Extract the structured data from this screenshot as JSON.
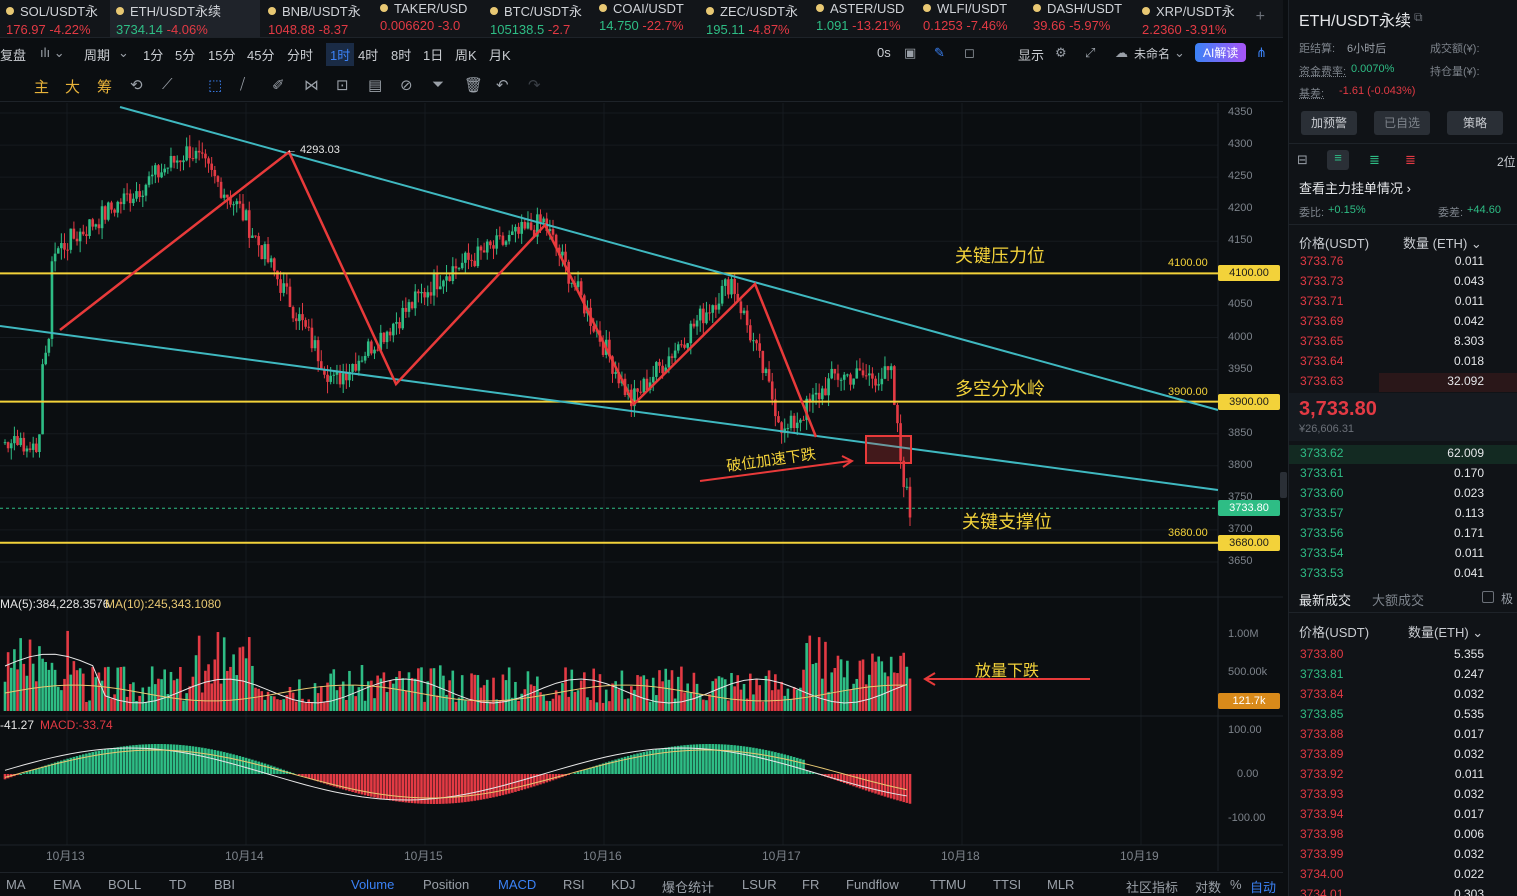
{
  "tickers": [
    {
      "name": "SOL/USDT永",
      "price": "176.97",
      "change": "-4.22%",
      "up": false
    },
    {
      "name": "ETH/USDT永续",
      "price": "3734.14",
      "change": "-4.06%",
      "up": true
    },
    {
      "name": "BNB/USDT永",
      "price": "1048.88",
      "change": "-8.37",
      "up": false
    },
    {
      "name": "TAKER/USD",
      "price": "0.006620",
      "change": "-3.0",
      "up": false
    },
    {
      "name": "BTC/USDT永",
      "price": "105138.5",
      "change": "-2.7",
      "up": true
    },
    {
      "name": "COAI/USDT",
      "price": "14.750",
      "change": "-22.7%",
      "up": true
    },
    {
      "name": "ZEC/USDT永",
      "price": "195.11",
      "change": "-4.87%",
      "up": true
    },
    {
      "name": "ASTER/USD",
      "price": "1.091",
      "change": "-13.21%",
      "up": true
    },
    {
      "name": "WLFI/USDT",
      "price": "0.1253",
      "change": "-7.46%",
      "up": false
    },
    {
      "name": "DASH/USDT",
      "price": "39.66",
      "change": "-5.97%",
      "up": false
    },
    {
      "name": "XRP/USDT永",
      "price": "2.2360",
      "change": "-3.91%",
      "up": false
    }
  ],
  "toolbar": {
    "replay": "复盘",
    "period": "周期",
    "timeframes": [
      "1分",
      "5分",
      "15分",
      "45分",
      "分时",
      "1时",
      "4时",
      "8时",
      "1日",
      "周K",
      "月K"
    ],
    "selected": "1时",
    "countdown": "0s",
    "display": "显示",
    "layout": "未命名",
    "ai": "AI解读"
  },
  "drawtools": [
    "主",
    "大",
    "筹"
  ],
  "chart_data": {
    "type": "candlestick",
    "symbol": "ETH/USDT永续",
    "interval": "1h",
    "x_ticks": [
      "10月13",
      "10月14",
      "10月15",
      "10月16",
      "10月17",
      "10月18",
      "10月19"
    ],
    "y_ticks": [
      4350,
      4300,
      4250,
      4200,
      4150,
      4100,
      4050,
      4000,
      3950,
      3900,
      3850,
      3800,
      3750,
      3700,
      3650
    ],
    "ylim": [
      3640,
      4370
    ],
    "current_price": "3733.80",
    "high_label": "4293.03",
    "levels": [
      {
        "price": "4100.00",
        "label": "关键压力位"
      },
      {
        "price": "3900.00",
        "label": "多空分水岭"
      },
      {
        "price": "3680.00",
        "label": "关键支撑位"
      }
    ],
    "annotations": {
      "breakdown": "破位加速下跌",
      "volume": "放量下跌"
    },
    "path": [
      4010,
      4130,
      4293,
      4200,
      3930,
      4100,
      4180,
      3900,
      4090,
      3850,
      3940,
      3940,
      3810,
      3725
    ],
    "volume": {
      "legend_ma5": "MA(5):384,228.3576",
      "legend_ma10": "MA(10):245,343.1080",
      "ticks": [
        "1.00M",
        "500.00k"
      ],
      "last": "121.7k"
    },
    "macd": {
      "legend_dif": "-41.27",
      "legend_macd": "MACD:-33.74",
      "ticks": [
        "100.00",
        "0.00",
        "-100.00"
      ]
    }
  },
  "bottom_tabs": [
    "MA",
    "EMA",
    "BOLL",
    "TD",
    "BBI",
    "Volume",
    "Position",
    "MACD",
    "RSI",
    "KDJ",
    "爆仓统计",
    "LSUR",
    "FR",
    "Fundflow",
    "TTMU",
    "TTSI",
    "MLR",
    "社区指标",
    "对数",
    "%",
    "自动"
  ],
  "panel": {
    "title": "ETH/USDT永续",
    "settle_label": "距结算:",
    "settle_value": "6小时后",
    "funding_label": "资金费率:",
    "funding_value": "0.0070%",
    "basis_label": "基差:",
    "basis_value": "-1.61 (-0.043%)",
    "turnover_label": "成交额(¥):",
    "oi_label": "持仓量(¥):",
    "buttons": [
      "加预警",
      "已自选",
      "策略"
    ],
    "depth_label": "2位",
    "mainorders": "查看主力挂单情况",
    "ratio_label": "委比:",
    "ratio_value": "+0.15%",
    "diff_label": "委差:",
    "diff_value": "+44.60",
    "book_header": [
      "价格(USDT)",
      "数量 (ETH)"
    ],
    "asks": [
      [
        "3733.76",
        "0.011"
      ],
      [
        "3733.73",
        "0.043"
      ],
      [
        "3733.71",
        "0.011"
      ],
      [
        "3733.69",
        "0.042"
      ],
      [
        "3733.65",
        "8.303"
      ],
      [
        "3733.64",
        "0.018"
      ],
      [
        "3733.63",
        "32.092"
      ]
    ],
    "mid_price": "3,733.80",
    "mid_cny": "¥26,606.31",
    "bids": [
      [
        "3733.62",
        "62.009"
      ],
      [
        "3733.61",
        "0.170"
      ],
      [
        "3733.60",
        "0.023"
      ],
      [
        "3733.57",
        "0.113"
      ],
      [
        "3733.56",
        "0.171"
      ],
      [
        "3733.54",
        "0.011"
      ],
      [
        "3733.53",
        "0.041"
      ]
    ],
    "trade_tabs": [
      "最新成交",
      "大额成交",
      "极"
    ],
    "trade_header": [
      "价格(USDT)",
      "数量(ETH)"
    ],
    "trades": [
      [
        "3733.80",
        "5.355",
        "r"
      ],
      [
        "3733.81",
        "0.247",
        "g"
      ],
      [
        "3733.84",
        "0.032",
        "r"
      ],
      [
        "3733.85",
        "0.535",
        "g"
      ],
      [
        "3733.88",
        "0.017",
        "r"
      ],
      [
        "3733.89",
        "0.032",
        "r"
      ],
      [
        "3733.92",
        "0.011",
        "r"
      ],
      [
        "3733.93",
        "0.032",
        "r"
      ],
      [
        "3733.94",
        "0.017",
        "r"
      ],
      [
        "3733.98",
        "0.006",
        "r"
      ],
      [
        "3733.99",
        "0.032",
        "r"
      ],
      [
        "3734.00",
        "0.022",
        "r"
      ],
      [
        "3734.01",
        "0.303",
        "r"
      ]
    ]
  }
}
